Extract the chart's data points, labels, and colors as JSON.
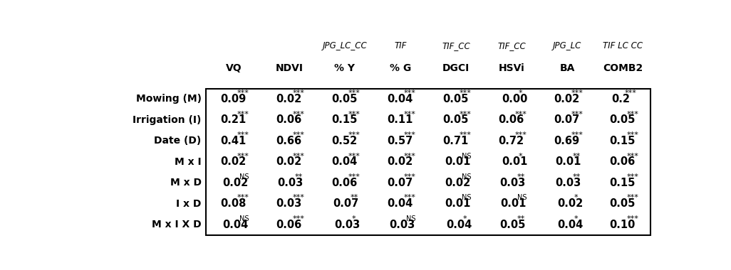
{
  "col_headers_line1": [
    "",
    "",
    "JPG_LC_CC",
    "TIF",
    "TIF_CC",
    "TIF_CC",
    "JPG_LC",
    "TIF LC CC"
  ],
  "col_headers_line2": [
    "VQ",
    "NDVI",
    "% Y",
    "% G",
    "DGCI",
    "HSVi",
    "BA",
    "COMB2"
  ],
  "row_labels": [
    "Mowing (M)",
    "Irrigation (I)",
    "Date (D)",
    "M x I",
    "M x D",
    "I x D",
    "M x I X D"
  ],
  "cells": [
    [
      [
        "0.09",
        "***"
      ],
      [
        "0.02",
        "***"
      ],
      [
        "0.05",
        "***"
      ],
      [
        "0.04",
        "***"
      ],
      [
        "0.05",
        "***"
      ],
      [
        "0.00",
        "*"
      ],
      [
        "0.02",
        "***"
      ],
      [
        "0.2",
        "***"
      ]
    ],
    [
      [
        "0.21",
        "***"
      ],
      [
        "0.06",
        "***"
      ],
      [
        "0.15",
        "***"
      ],
      [
        "0.11",
        "***"
      ],
      [
        "0.05",
        "***"
      ],
      [
        "0.06",
        "***"
      ],
      [
        "0.07",
        "***"
      ],
      [
        "0.05",
        "***"
      ]
    ],
    [
      [
        "0.41",
        "***"
      ],
      [
        "0.66",
        "***"
      ],
      [
        "0.52",
        "***"
      ],
      [
        "0.57",
        "***"
      ],
      [
        "0.71",
        "***"
      ],
      [
        "0.72",
        "***"
      ],
      [
        "0.69",
        "***"
      ],
      [
        "0.15",
        "***"
      ]
    ],
    [
      [
        "0.02",
        "***"
      ],
      [
        "0.02",
        "***"
      ],
      [
        "0.04",
        "***"
      ],
      [
        "0.02",
        "***"
      ],
      [
        "0.01",
        "NS"
      ],
      [
        "0.01",
        "*"
      ],
      [
        "0.01",
        "**"
      ],
      [
        "0.06",
        "***"
      ]
    ],
    [
      [
        "0.02",
        "NS"
      ],
      [
        "0.03",
        "**"
      ],
      [
        "0.06",
        "***"
      ],
      [
        "0.07",
        "***"
      ],
      [
        "0.02",
        "NS"
      ],
      [
        "0.03",
        "**"
      ],
      [
        "0.03",
        "**"
      ],
      [
        "0.15",
        "***"
      ]
    ],
    [
      [
        "0.08",
        "***"
      ],
      [
        "0.03",
        "***"
      ],
      [
        "0.07",
        "**"
      ],
      [
        "0.04",
        "***"
      ],
      [
        "0.01",
        "NS"
      ],
      [
        "0.01",
        "NS"
      ],
      [
        "0.02",
        "*"
      ],
      [
        "0.05",
        "***"
      ]
    ],
    [
      [
        "0.04",
        "NS"
      ],
      [
        "0.06",
        "***"
      ],
      [
        "0.03",
        "*"
      ],
      [
        "0.03",
        "NS"
      ],
      [
        "0.04",
        "*"
      ],
      [
        "0.05",
        "**"
      ],
      [
        "0.04",
        "*"
      ],
      [
        "0.10",
        "***"
      ]
    ]
  ],
  "figsize": [
    10.26,
    3.8
  ],
  "dpi": 100,
  "background": "#ffffff"
}
